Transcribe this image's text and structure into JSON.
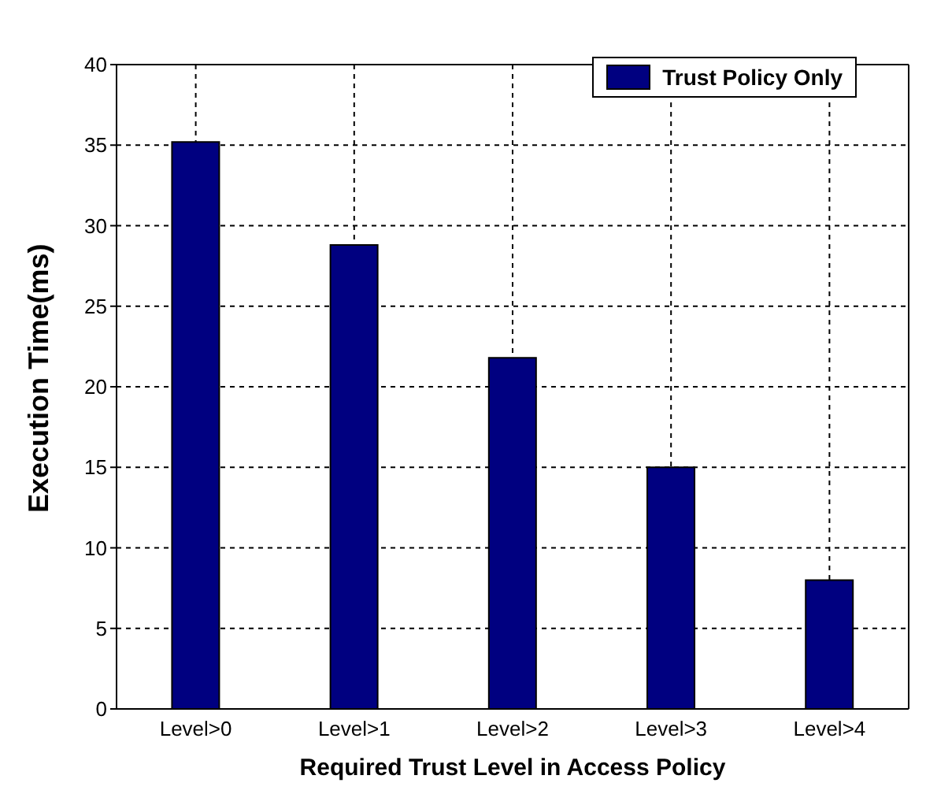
{
  "chart_data": {
    "type": "bar",
    "xlabel": "Required Trust Level in Access Policy",
    "ylabel": "Execution Time(ms)",
    "categories": [
      "Level>0",
      "Level>1",
      "Level>2",
      "Level>3",
      "Level>4"
    ],
    "series": [
      {
        "name": "Trust Policy Only",
        "color": "#000080",
        "values": [
          35.2,
          28.8,
          21.8,
          15.0,
          8.0
        ]
      }
    ],
    "ylim": [
      0,
      40
    ],
    "yticks": [
      0,
      5,
      10,
      15,
      20,
      25,
      30,
      35,
      40
    ],
    "grid": true,
    "legend": "top right"
  }
}
